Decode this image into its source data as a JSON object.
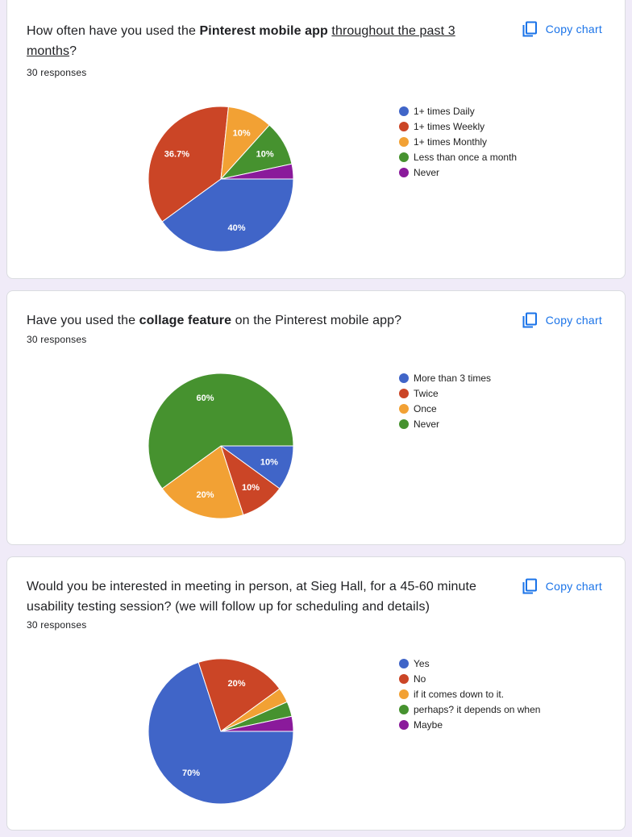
{
  "colors": {
    "blue": "#4065c8",
    "red": "#cb4526",
    "orange": "#f2a134",
    "green": "#46922f",
    "purple": "#8a1a9b"
  },
  "copy_chart_label": "Copy chart",
  "charts": [
    {
      "question_parts": {
        "pre": "How often have you used the ",
        "bold": "Pinterest mobile app",
        "mid": " ",
        "underline": "throughout the past 3 months",
        "post": "?"
      },
      "responses": "30 responses",
      "chart_data": {
        "type": "pie",
        "title": "How often have you used the Pinterest mobile app throughout the past 3 months?",
        "categories": [
          "1+ times Daily",
          "1+ times Weekly",
          "1+ times Monthly",
          "Less than once a month",
          "Never"
        ],
        "values": [
          12,
          11,
          3,
          3,
          1
        ],
        "percent_labels": [
          "40%",
          "36.7%",
          "10%",
          "10%",
          ""
        ],
        "colors": [
          "#4065c8",
          "#cb4526",
          "#f2a134",
          "#46922f",
          "#8a1a9b"
        ],
        "legend_position": "right"
      }
    },
    {
      "question_parts": {
        "pre": "Have you used the ",
        "bold": "collage feature",
        "mid": " on the Pinterest mobile app?",
        "underline": "",
        "post": ""
      },
      "responses": "30 responses",
      "chart_data": {
        "type": "pie",
        "title": "Have you used the collage feature on the Pinterest mobile app?",
        "categories": [
          "More than 3 times",
          "Twice",
          "Once",
          "Never"
        ],
        "values": [
          3,
          3,
          6,
          18
        ],
        "percent_labels": [
          "10%",
          "10%",
          "20%",
          "60%"
        ],
        "colors": [
          "#4065c8",
          "#cb4526",
          "#f2a134",
          "#46922f"
        ],
        "legend_position": "right"
      }
    },
    {
      "question_parts": {
        "pre": "Would you be interested in meeting in person, at Sieg Hall, for a 45-60 minute usability testing session? (we will follow up for scheduling and details)",
        "bold": "",
        "mid": "",
        "underline": "",
        "post": ""
      },
      "responses": "30 responses",
      "chart_data": {
        "type": "pie",
        "title": "Would you be interested in meeting in person, at Sieg Hall, for a 45-60 minute usability testing session?",
        "categories": [
          "Yes",
          "No",
          "if it comes down to it.",
          "perhaps? it depends on when",
          "Maybe"
        ],
        "values": [
          21,
          6,
          1,
          1,
          1
        ],
        "percent_labels": [
          "70%",
          "20%",
          "",
          "",
          ""
        ],
        "colors": [
          "#4065c8",
          "#cb4526",
          "#f2a134",
          "#46922f",
          "#8a1a9b"
        ],
        "legend_position": "right"
      }
    }
  ]
}
